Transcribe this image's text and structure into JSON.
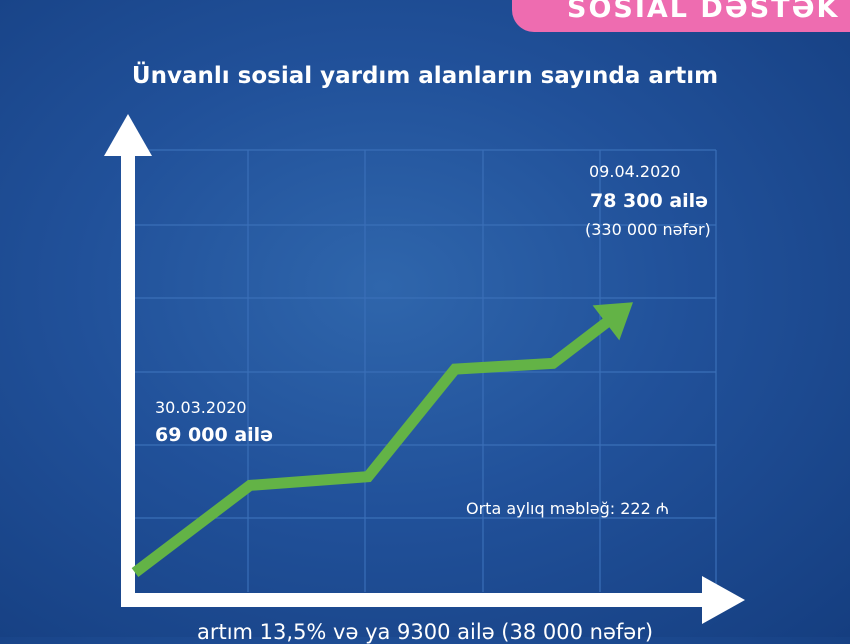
{
  "header": {
    "badge": "SOSİAL DƏSTƏK"
  },
  "chart_data": {
    "type": "line",
    "title": "Ünvanlı sosial yardım alanların sayında artım",
    "annotations": {
      "start": {
        "date": "30.03.2020",
        "value": "69 000 ailə"
      },
      "end": {
        "date": "09.04.2020",
        "value": "78 300 ailə",
        "people": "(330 000 nəfər)"
      },
      "average": "Orta aylıq məbləğ: 222 ₼"
    },
    "series": [
      {
        "values": [
          69000,
          72000,
          72300,
          76000,
          76200,
          78300
        ]
      }
    ],
    "points": [
      {
        "x": "30.03.2020",
        "y": 69000
      },
      {
        "x": "09.04.2020",
        "y": 78300
      }
    ],
    "line_color": "#63b346",
    "grid": true
  },
  "footer": {
    "text": "artım 13,5% və ya 9300 ailə (38 000 nəfər)"
  },
  "colors": {
    "background": "#21519a",
    "badge": "#ee6cb0",
    "line": "#63b346"
  }
}
